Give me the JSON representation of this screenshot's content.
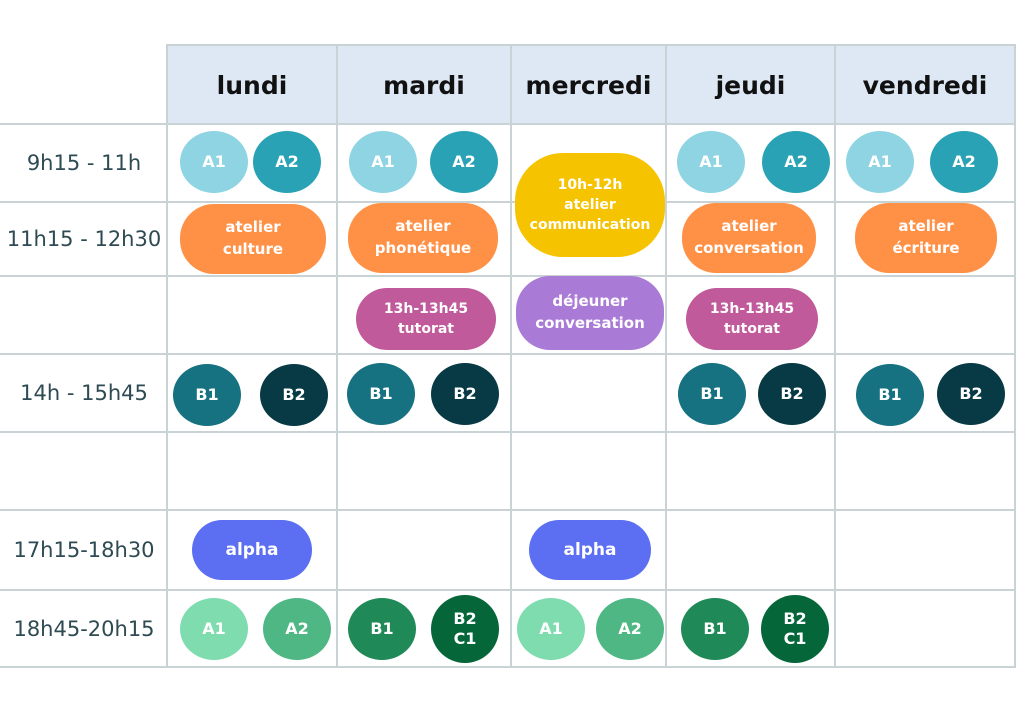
{
  "days": [
    "lundi",
    "mardi",
    "mercredi",
    "jeudi",
    "vendredi"
  ],
  "times": [
    "9h15 - 11h",
    "11h15 - 12h30",
    "",
    "14h - 15h45",
    "",
    "17h15-18h30",
    "18h45-20h15"
  ],
  "colors": {
    "a1_light": "#8fd4e3",
    "a2_teal": "#2aa2b5",
    "atelier_orange": "#ff9147",
    "communication_yellow": "#f6c300",
    "tutorat_magenta": "#c05a9b",
    "dejeuner_purple": "#a97ad6",
    "b1_dark_teal": "#167180",
    "b2_darker_teal": "#073a45",
    "alpha_blue": "#5c6ef2",
    "evening_a_light_green": "#7edcae",
    "evening_a2_green": "#4eb784",
    "evening_b1_green": "#1f8a57",
    "evening_b2c1_green": "#05663a",
    "header_bg": "#dde8f4",
    "grid_line": "#c9d3d6"
  },
  "items": {
    "mon_a1": "A1",
    "mon_a2": "A2",
    "tue_a1": "A1",
    "tue_a2": "A2",
    "wed_comm": [
      "10h-12h",
      "atelier",
      "communication"
    ],
    "thu_a1": "A1",
    "thu_a2": "A2",
    "fri_a1": "A1",
    "fri_a2": "A2",
    "mon_atelier": [
      "atelier",
      "culture"
    ],
    "tue_atelier": [
      "atelier",
      "phonétique"
    ],
    "thu_atelier": [
      "atelier",
      "conversation"
    ],
    "fri_atelier": [
      "atelier",
      "écriture"
    ],
    "tue_tutorat": [
      "13h-13h45",
      "tutorat"
    ],
    "wed_dejeuner": [
      "déjeuner",
      "conversation"
    ],
    "thu_tutorat": [
      "13h-13h45",
      "tutorat"
    ],
    "mon_b1": "B1",
    "mon_b2": "B2",
    "tue_b1": "B1",
    "tue_b2": "B2",
    "thu_b1": "B1",
    "thu_b2": "B2",
    "fri_b1": "B1",
    "fri_b2": "B2",
    "mon_alpha": "alpha",
    "wed_alpha": "alpha",
    "mon_eve_a1": "A1",
    "mon_eve_a2": "A2",
    "tue_eve_b1": "B1",
    "tue_eve_b2c1": [
      "B2",
      "C1"
    ],
    "wed_eve_a1": "A1",
    "wed_eve_a2": "A2",
    "thu_eve_b1": "B1",
    "thu_eve_b2c1": [
      "B2",
      "C1"
    ]
  }
}
